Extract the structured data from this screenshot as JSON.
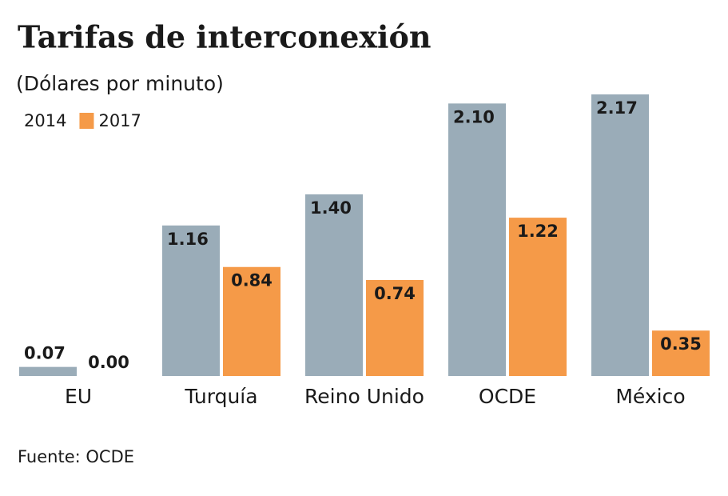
{
  "chart_data": {
    "type": "bar",
    "title": "Tarifas de interconexión",
    "subtitle": "(Dólares por minuto)",
    "categories": [
      "EU",
      "Turquía",
      "Reino Unido",
      "OCDE",
      "México"
    ],
    "series": [
      {
        "name": "2014",
        "color": "#9aacb8",
        "values": [
          0.07,
          1.16,
          1.4,
          2.1,
          2.17
        ],
        "value_labels": [
          "0.07",
          "1.16",
          "1.40",
          "2.10",
          "2.17"
        ]
      },
      {
        "name": "2017",
        "color": "#f59a48",
        "values": [
          0.0,
          0.84,
          0.74,
          1.22,
          0.35
        ],
        "value_labels": [
          "0.00",
          "0.84",
          "0.74",
          "1.22",
          "0.35"
        ]
      }
    ],
    "source": "Fuente: OCDE"
  }
}
